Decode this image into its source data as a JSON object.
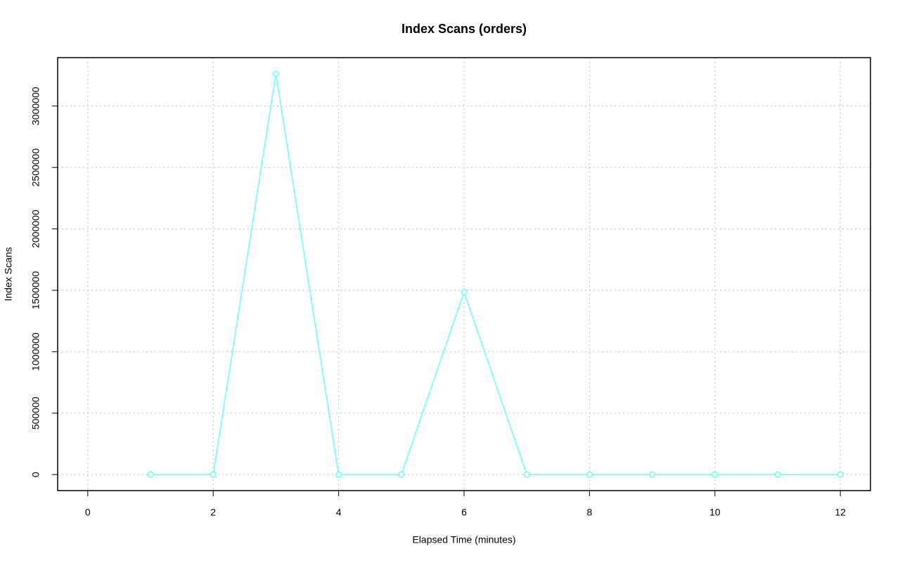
{
  "chart_data": {
    "type": "line",
    "title": "Index Scans (orders)",
    "x_label": "Elapsed Time (minutes)",
    "y_label": "Index Scans",
    "x": [
      1,
      2,
      3,
      4,
      5,
      6,
      7,
      8,
      9,
      10,
      11,
      12
    ],
    "values": [
      0,
      0,
      3262000,
      0,
      0,
      1486000,
      0,
      0,
      0,
      0,
      0,
      0
    ],
    "color": "#66ffff",
    "xlim": [
      -0.48,
      12.48
    ],
    "xticks": [
      0,
      2,
      4,
      6,
      8,
      10,
      12
    ],
    "ylim": [
      -130500,
      3394000
    ],
    "yticks": [
      0,
      500000,
      1000000,
      1500000,
      2000000,
      2500000,
      3000000
    ],
    "grid": true
  }
}
